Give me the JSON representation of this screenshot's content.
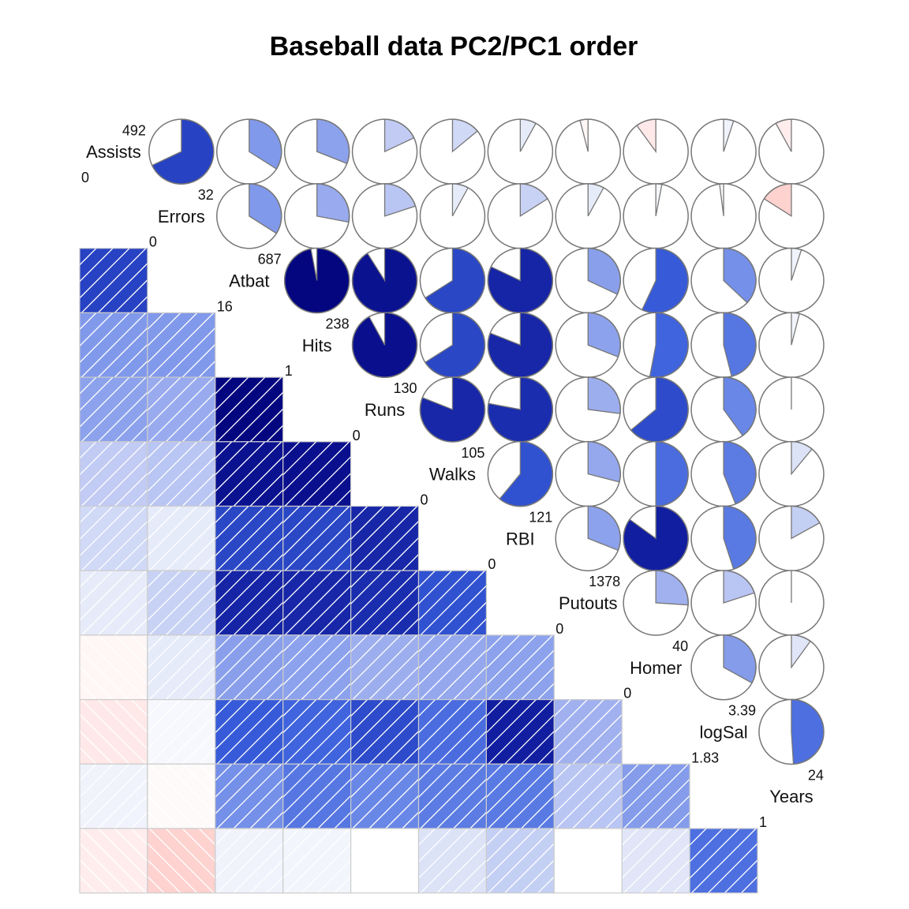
{
  "chart_data": {
    "type": "corrgram",
    "title": "Baseball data PC2/PC1 order",
    "lower_panel": "shade",
    "upper_panel": "pie",
    "variables": [
      {
        "name": "Assists",
        "max": "492",
        "min": "0"
      },
      {
        "name": "Errors",
        "max": "32",
        "min": "0"
      },
      {
        "name": "Atbat",
        "max": "687",
        "min": "16"
      },
      {
        "name": "Hits",
        "max": "238",
        "min": "1"
      },
      {
        "name": "Runs",
        "max": "130",
        "min": "0"
      },
      {
        "name": "Walks",
        "max": "105",
        "min": "0"
      },
      {
        "name": "RBI",
        "max": "121",
        "min": "0"
      },
      {
        "name": "Putouts",
        "max": "1378",
        "min": "0"
      },
      {
        "name": "Homer",
        "max": "40",
        "min": "0"
      },
      {
        "name": "logSal",
        "max": "3.39",
        "min": "1.83"
      },
      {
        "name": "Years",
        "max": "24",
        "min": "1"
      }
    ],
    "correlations": [
      [
        1.0,
        0.68,
        0.34,
        0.31,
        0.18,
        0.14,
        0.08,
        -0.04,
        -0.1,
        0.05,
        -0.08
      ],
      [
        0.68,
        1.0,
        0.34,
        0.28,
        0.2,
        0.08,
        0.16,
        0.08,
        0.03,
        -0.02,
        -0.16
      ],
      [
        0.34,
        0.34,
        1.0,
        0.97,
        0.91,
        0.66,
        0.82,
        0.32,
        0.57,
        0.37,
        0.05
      ],
      [
        0.31,
        0.28,
        0.97,
        1.0,
        0.92,
        0.66,
        0.81,
        0.31,
        0.53,
        0.46,
        0.04
      ],
      [
        0.18,
        0.2,
        0.91,
        0.92,
        1.0,
        0.81,
        0.78,
        0.27,
        0.64,
        0.4,
        0.0
      ],
      [
        0.14,
        0.08,
        0.66,
        0.66,
        0.81,
        1.0,
        0.61,
        0.29,
        0.5,
        0.44,
        0.11
      ],
      [
        0.08,
        0.16,
        0.82,
        0.81,
        0.78,
        0.61,
        1.0,
        0.31,
        0.85,
        0.45,
        0.17
      ],
      [
        -0.04,
        0.08,
        0.32,
        0.31,
        0.27,
        0.29,
        0.31,
        1.0,
        0.26,
        0.2,
        0.0
      ],
      [
        -0.1,
        0.03,
        0.57,
        0.53,
        0.64,
        0.5,
        0.85,
        0.26,
        1.0,
        0.33,
        0.1
      ],
      [
        0.05,
        -0.02,
        0.37,
        0.46,
        0.4,
        0.44,
        0.45,
        0.2,
        0.33,
        1.0,
        0.49
      ],
      [
        -0.08,
        -0.16,
        0.05,
        0.04,
        0.0,
        0.11,
        0.17,
        0.0,
        0.1,
        0.49,
        1.0
      ]
    ]
  }
}
